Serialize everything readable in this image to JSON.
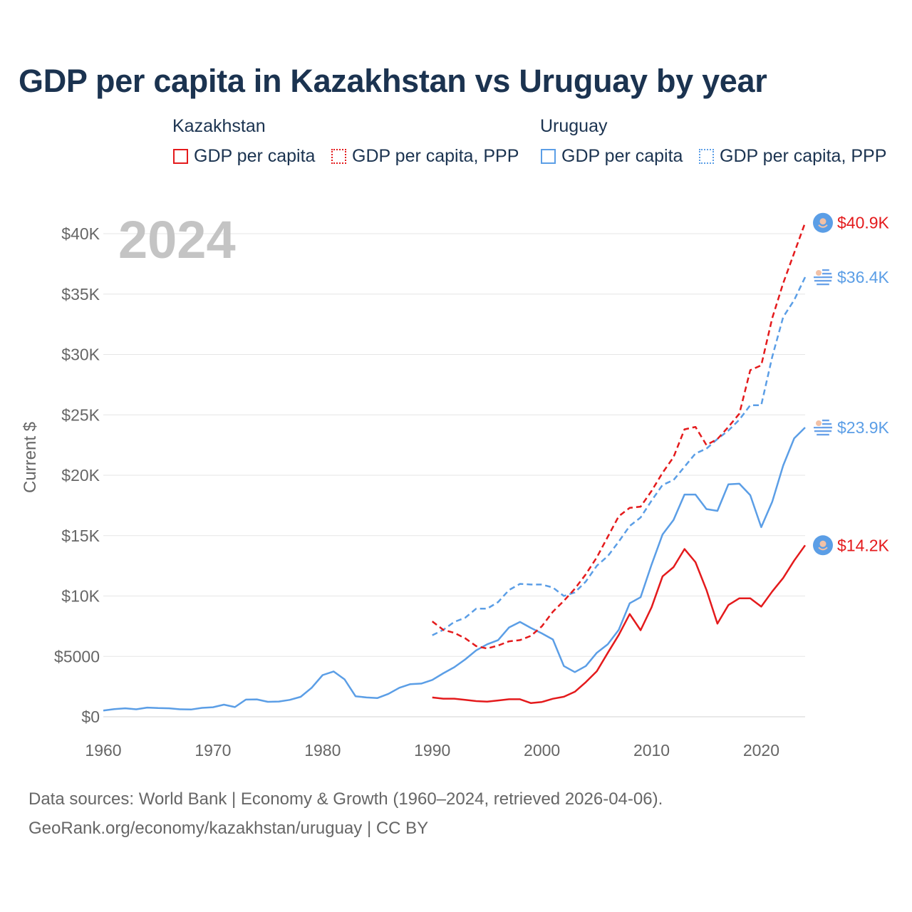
{
  "title": "GDP per capita in Kazakhstan vs Uruguay by year",
  "legend": {
    "kazakhstan_title": "Kazakhstan",
    "uruguay_title": "Uruguay",
    "kz_gdp": "GDP per capita",
    "kz_ppp": "GDP per capita, PPP",
    "uy_gdp": "GDP per capita",
    "uy_ppp": "GDP per capita, PPP"
  },
  "year_watermark": "2024",
  "footer": {
    "line1": "Data sources: World Bank | Economy & Growth (1960–2024, retrieved 2026-04-06).",
    "line2": "GeoRank.org/economy/kazakhstan/uruguay | CC BY"
  },
  "colors": {
    "kazakhstan": "#e41a1c",
    "uruguay": "#5b9ee6",
    "grid": "#e6e6e6",
    "axis_text": "#666666"
  },
  "chart_data": {
    "type": "line",
    "ylabel": "Current $",
    "xlim": [
      1960,
      2024
    ],
    "ylim": [
      0,
      40000
    ],
    "x_ticks": [
      1960,
      1970,
      1980,
      1990,
      2000,
      2010,
      2020
    ],
    "y_ticks": [
      {
        "value": 0,
        "label": "$0"
      },
      {
        "value": 5000,
        "label": "$5000"
      },
      {
        "value": 10000,
        "label": "$10K"
      },
      {
        "value": 15000,
        "label": "$15K"
      },
      {
        "value": 20000,
        "label": "$20K"
      },
      {
        "value": 25000,
        "label": "$25K"
      },
      {
        "value": 30000,
        "label": "$30K"
      },
      {
        "value": 35000,
        "label": "$35K"
      },
      {
        "value": 40000,
        "label": "$40K"
      }
    ],
    "series": [
      {
        "name": "Uruguay GDP per capita",
        "country": "uruguay",
        "dashed": false,
        "end_label": "$23.9K",
        "x": [
          1960,
          1961,
          1962,
          1963,
          1964,
          1965,
          1966,
          1967,
          1968,
          1969,
          1970,
          1971,
          1972,
          1973,
          1974,
          1975,
          1976,
          1977,
          1978,
          1979,
          1980,
          1981,
          1982,
          1983,
          1984,
          1985,
          1986,
          1987,
          1988,
          1989,
          1990,
          1991,
          1992,
          1993,
          1994,
          1995,
          1996,
          1997,
          1998,
          1999,
          2000,
          2001,
          2002,
          2003,
          2004,
          2005,
          2006,
          2007,
          2008,
          2009,
          2010,
          2011,
          2012,
          2013,
          2014,
          2015,
          2016,
          2017,
          2018,
          2019,
          2020,
          2021,
          2022,
          2023,
          2024
        ],
        "values": [
          520,
          640,
          700,
          620,
          760,
          720,
          700,
          620,
          600,
          740,
          790,
          1000,
          800,
          1420,
          1440,
          1240,
          1260,
          1400,
          1650,
          2400,
          3450,
          3750,
          3100,
          1700,
          1600,
          1550,
          1900,
          2400,
          2700,
          2750,
          3050,
          3600,
          4100,
          4750,
          5500,
          6000,
          6350,
          7400,
          7850,
          7350,
          6900,
          6400,
          4200,
          3700,
          4200,
          5300,
          6000,
          7200,
          9400,
          9900,
          12600,
          15100,
          16300,
          18400,
          18400,
          17200,
          17050,
          19250,
          19300,
          18350,
          15700,
          17800,
          20800,
          23050,
          23950
        ]
      },
      {
        "name": "Uruguay GDP per capita, PPP",
        "country": "uruguay",
        "dashed": true,
        "end_label": "$36.4K",
        "x": [
          1990,
          1991,
          1992,
          1993,
          1994,
          1995,
          1996,
          1997,
          1998,
          1999,
          2000,
          2001,
          2002,
          2003,
          2004,
          2005,
          2006,
          2007,
          2008,
          2009,
          2010,
          2011,
          2012,
          2013,
          2014,
          2015,
          2016,
          2017,
          2018,
          2019,
          2020,
          2021,
          2022,
          2023,
          2024
        ],
        "values": [
          6750,
          7200,
          7850,
          8200,
          8950,
          8950,
          9500,
          10500,
          11000,
          10950,
          10950,
          10700,
          10000,
          10300,
          11200,
          12500,
          13300,
          14500,
          15800,
          16500,
          17900,
          19200,
          19600,
          20700,
          21800,
          22200,
          23000,
          23700,
          24600,
          25800,
          25800,
          29800,
          33100,
          34500,
          36400
        ]
      },
      {
        "name": "Kazakhstan GDP per capita",
        "country": "kazakhstan",
        "dashed": false,
        "end_label": "$14.2K",
        "x": [
          1990,
          1991,
          1992,
          1993,
          1994,
          1995,
          1996,
          1997,
          1998,
          1999,
          2000,
          2001,
          2002,
          2003,
          2004,
          2005,
          2006,
          2007,
          2008,
          2009,
          2010,
          2011,
          2012,
          2013,
          2014,
          2015,
          2016,
          2017,
          2018,
          2019,
          2020,
          2021,
          2022,
          2023,
          2024
        ],
        "values": [
          1600,
          1500,
          1500,
          1400,
          1300,
          1250,
          1350,
          1450,
          1450,
          1130,
          1230,
          1490,
          1660,
          2070,
          2870,
          3770,
          5290,
          6770,
          8510,
          7170,
          9070,
          11630,
          12390,
          13890,
          12800,
          10510,
          7710,
          9250,
          9810,
          9810,
          9120,
          10370,
          11490,
          12930,
          14200
        ]
      },
      {
        "name": "Kazakhstan GDP per capita, PPP",
        "country": "kazakhstan",
        "dashed": true,
        "end_label": "$40.9K",
        "x": [
          1990,
          1991,
          1992,
          1993,
          1994,
          1995,
          1996,
          1997,
          1998,
          1999,
          2000,
          2001,
          2002,
          2003,
          2004,
          2005,
          2006,
          2007,
          2008,
          2009,
          2010,
          2011,
          2012,
          2013,
          2014,
          2015,
          2016,
          2017,
          2018,
          2019,
          2020,
          2021,
          2022,
          2023,
          2024
        ],
        "values": [
          7900,
          7200,
          6950,
          6500,
          5850,
          5650,
          5900,
          6250,
          6350,
          6700,
          7500,
          8700,
          9600,
          10600,
          11800,
          13200,
          14900,
          16600,
          17300,
          17400,
          18700,
          20200,
          21500,
          23800,
          24000,
          22500,
          23000,
          24000,
          25100,
          28700,
          29100,
          33000,
          35900,
          38400,
          40900
        ]
      }
    ]
  }
}
